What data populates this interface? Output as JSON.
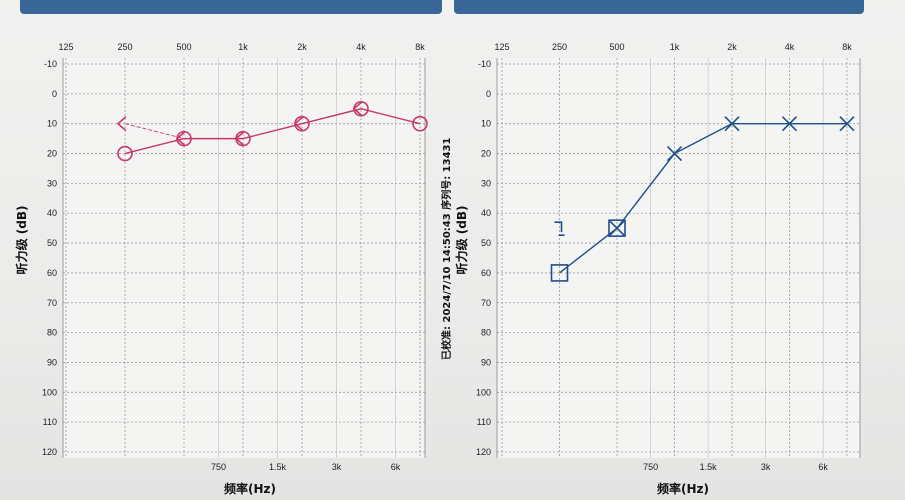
{
  "calibration_text": "已校准: 2024/7/10 14:50:43 序列号: 13431",
  "chart_data": [
    {
      "type": "line",
      "ear": "right",
      "color": "#c8386e",
      "top_ticks": [
        "125",
        "250",
        "500",
        "1k",
        "2k",
        "4k",
        "8k"
      ],
      "bottom_ticks": [
        "750",
        "1.5k",
        "3k",
        "6k"
      ],
      "y_ticks": [
        -10,
        0,
        10,
        20,
        30,
        40,
        50,
        60,
        70,
        80,
        90,
        100,
        110,
        120
      ],
      "ylim": [
        -10,
        120
      ],
      "ylabel": "听力级 (dB)",
      "xlabel": "频率(Hz)",
      "series": [
        {
          "marker": "circle",
          "x": [
            250,
            500,
            1000,
            2000,
            4000,
            8000
          ],
          "y": [
            20,
            15,
            15,
            10,
            5,
            10
          ]
        },
        {
          "marker": "bracket-left",
          "x": [
            250,
            500,
            1000,
            2000,
            4000
          ],
          "y": [
            10,
            15,
            15,
            10,
            5
          ]
        }
      ]
    },
    {
      "type": "line",
      "ear": "left",
      "color": "#1f4f8a",
      "top_ticks": [
        "125",
        "250",
        "500",
        "1k",
        "2k",
        "4k",
        "8k"
      ],
      "bottom_ticks": [
        "750",
        "1.5k",
        "3k",
        "6k"
      ],
      "y_ticks": [
        -10,
        0,
        10,
        20,
        30,
        40,
        50,
        60,
        70,
        80,
        90,
        100,
        110,
        120
      ],
      "ylim": [
        -10,
        120
      ],
      "ylabel": "听力级 (dB)",
      "xlabel": "频率(Hz)",
      "series": [
        {
          "marker": "cross",
          "x": [
            500,
            1000,
            2000,
            4000,
            8000
          ],
          "y": [
            45,
            20,
            10,
            10,
            10
          ]
        },
        {
          "marker": "square",
          "x": [
            250,
            500
          ],
          "y": [
            60,
            45
          ]
        },
        {
          "marker": "bracket-right",
          "x": [
            250
          ],
          "y": [
            45
          ]
        }
      ]
    }
  ]
}
